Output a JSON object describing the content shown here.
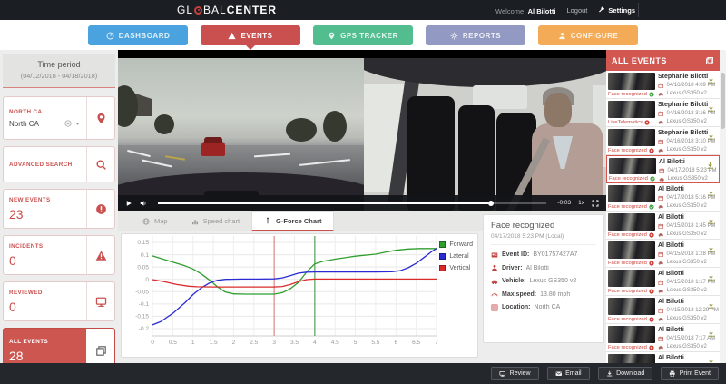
{
  "header": {
    "logo_part1": "GL",
    "logo_part2": "BAL",
    "logo_part3": "CENTER",
    "welcome": "Welcome",
    "user": "Al Bilotti",
    "logout": "Logout",
    "settings": "Settings"
  },
  "nav": {
    "items": [
      {
        "label": "DASHBOARD",
        "color": "#4aa3df",
        "icon": "gauge",
        "active": false
      },
      {
        "label": "EVENTS",
        "color": "#c9504e",
        "icon": "warning",
        "active": true
      },
      {
        "label": "GPS TRACKER",
        "color": "#52be90",
        "icon": "pin",
        "active": false
      },
      {
        "label": "REPORTS",
        "color": "#9299c2",
        "icon": "gear",
        "active": false
      },
      {
        "label": "CONFIGURE",
        "color": "#f3ab57",
        "icon": "person",
        "active": false
      }
    ]
  },
  "sidebar": {
    "time_period_title": "Time period",
    "time_period_range": "(04/12/2018 - 04/18/2018)",
    "filters": [
      {
        "label": "NORTH CA",
        "value": "North CA",
        "type": "select",
        "icon": "pin",
        "active": false
      },
      {
        "label": "ADVANCED SEARCH",
        "value": "",
        "type": "plain",
        "icon": "search",
        "active": false
      },
      {
        "label": "NEW EVENTS",
        "value": "23",
        "type": "count",
        "icon": "alert",
        "active": false
      },
      {
        "label": "INCIDENTS",
        "value": "0",
        "type": "count",
        "icon": "warning",
        "active": false
      },
      {
        "label": "REVIEWED",
        "value": "0",
        "type": "count",
        "icon": "monitor",
        "active": false
      },
      {
        "label": "ALL EVENTS",
        "value": "28",
        "type": "count",
        "icon": "copies",
        "active": true
      }
    ]
  },
  "video": {
    "remaining": "-0:03",
    "speed": "1x"
  },
  "tabs": {
    "items": [
      {
        "label": "Map",
        "icon": "globe",
        "active": false
      },
      {
        "label": "Speed chart",
        "icon": "barchart",
        "active": false
      },
      {
        "label": "G-Force Chart",
        "icon": "gforce",
        "active": true
      }
    ]
  },
  "chart_data": {
    "type": "line",
    "title": "",
    "xlabel": "",
    "ylabel": "",
    "xlim": [
      0,
      7
    ],
    "ylim": [
      -0.225,
      0.175
    ],
    "grid": true,
    "legend_position": "right",
    "x_ticks": [
      "0",
      "0.5",
      "1",
      "1.5",
      "2",
      "2.5",
      "3",
      "3.5",
      "4",
      "4.5",
      "5",
      "5.5",
      "6",
      "6.5",
      "7"
    ],
    "y_ticks": [
      "0.15",
      "0.1",
      "0.05",
      "0",
      "-0.05",
      "-0.1",
      "-0.15",
      "-0.2"
    ],
    "markers": [
      {
        "x": 3,
        "color": "#e08a85"
      },
      {
        "x": 4,
        "color": "#55a055"
      }
    ],
    "series": [
      {
        "name": "Forward",
        "color": "#2f9e2f",
        "points": [
          [
            0,
            0.095
          ],
          [
            0.4,
            0.075
          ],
          [
            0.8,
            0.055
          ],
          [
            1,
            0.042
          ],
          [
            1.2,
            0.022
          ],
          [
            1.4,
            -0.002
          ],
          [
            1.6,
            -0.03
          ],
          [
            1.8,
            -0.052
          ],
          [
            2,
            -0.059
          ],
          [
            2.3,
            -0.06
          ],
          [
            2.7,
            -0.06
          ],
          [
            3,
            -0.06
          ],
          [
            3.2,
            -0.054
          ],
          [
            3.4,
            -0.038
          ],
          [
            3.6,
            -0.012
          ],
          [
            3.8,
            0.03
          ],
          [
            4,
            0.063
          ],
          [
            4.2,
            0.073
          ],
          [
            4.5,
            0.082
          ],
          [
            5,
            0.094
          ],
          [
            5.5,
            0.102
          ],
          [
            5.8,
            0.112
          ],
          [
            6,
            0.118
          ],
          [
            6.3,
            0.123
          ],
          [
            6.6,
            0.125
          ],
          [
            7,
            0.125
          ]
        ]
      },
      {
        "name": "Lateral",
        "color": "#2b2bd6",
        "points": [
          [
            0,
            -0.185
          ],
          [
            0.2,
            -0.172
          ],
          [
            0.5,
            -0.138
          ],
          [
            0.8,
            -0.095
          ],
          [
            1,
            -0.062
          ],
          [
            1.2,
            -0.035
          ],
          [
            1.4,
            -0.015
          ],
          [
            1.6,
            -0.004
          ],
          [
            1.8,
            0
          ],
          [
            2.2,
            0.001
          ],
          [
            2.6,
            0.001
          ],
          [
            3,
            0.002
          ],
          [
            3.2,
            0.006
          ],
          [
            3.4,
            0.015
          ],
          [
            3.6,
            0.025
          ],
          [
            3.8,
            0.029
          ],
          [
            4,
            0.03
          ],
          [
            4.5,
            0.03
          ],
          [
            5,
            0.03
          ],
          [
            5.5,
            0.03
          ],
          [
            5.9,
            0.031
          ],
          [
            6.1,
            0.035
          ],
          [
            6.3,
            0.047
          ],
          [
            6.5,
            0.065
          ],
          [
            6.7,
            0.09
          ],
          [
            6.9,
            0.115
          ],
          [
            7,
            0.125
          ]
        ]
      },
      {
        "name": "Vertical",
        "color": "#d92b2b",
        "points": [
          [
            0,
            -0.001
          ],
          [
            0.3,
            -0.01
          ],
          [
            0.6,
            -0.021
          ],
          [
            0.9,
            -0.028
          ],
          [
            1.1,
            -0.03
          ],
          [
            1.5,
            -0.031
          ],
          [
            2,
            -0.031
          ],
          [
            2.5,
            -0.031
          ],
          [
            3,
            -0.031
          ],
          [
            3.2,
            -0.029
          ],
          [
            3.4,
            -0.021
          ],
          [
            3.6,
            -0.009
          ],
          [
            3.8,
            -0.001
          ],
          [
            4,
            0.001
          ],
          [
            4.5,
            0.001
          ],
          [
            5,
            0.001
          ],
          [
            5.5,
            0.001
          ],
          [
            6,
            0.001
          ],
          [
            6.5,
            0.001
          ],
          [
            7,
            0.001
          ]
        ]
      }
    ]
  },
  "event_details": {
    "title": "Face recognized",
    "timestamp": "04/17/2018 5:23 PM (Local)",
    "fields": [
      {
        "label": "Event ID",
        "value": "BY01757427A7",
        "icon": "idcard"
      },
      {
        "label": "Driver",
        "value": "Al Bilotti",
        "icon": "person"
      },
      {
        "label": "Vehicle",
        "value": "Lexus GS350 v2",
        "icon": "car"
      },
      {
        "label": "Max speed",
        "value": "13.80 mph",
        "icon": "speedo"
      },
      {
        "label": "Location",
        "value": "North CA",
        "icon": "mapgrid"
      }
    ]
  },
  "events_panel": {
    "title": "ALL EVENTS",
    "items": [
      {
        "name": "Stephanie Bilotti",
        "date": "04/16/2018 4:09 PM",
        "vehicle": "Lexus GS350 v2",
        "status": "Face recognized",
        "status_state": "ok",
        "selected": false
      },
      {
        "name": "Stephanie Bilotti",
        "date": "04/16/2018 3:16 PM",
        "vehicle": "Lexus GS350 v2",
        "status": "LiveTelematics",
        "status_state": "alert",
        "selected": false
      },
      {
        "name": "Stephanie Bilotti",
        "date": "04/16/2018 3:10 PM",
        "vehicle": "Lexus GS350 v2",
        "status": "Face recognized",
        "status_state": "alert",
        "selected": false
      },
      {
        "name": "Al Bilotti",
        "date": "04/17/2018 5:23 PM",
        "vehicle": "Lexus GS350 v2",
        "status": "Face recognized",
        "status_state": "ok",
        "selected": true
      },
      {
        "name": "Al Bilotti",
        "date": "04/17/2018 5:16 PM",
        "vehicle": "Lexus GS350 v2",
        "status": "Face recognized",
        "status_state": "ok",
        "selected": false
      },
      {
        "name": "Al Bilotti",
        "date": "04/15/2018 1:45 PM",
        "vehicle": "Lexus GS350 v2",
        "status": "Face recognized",
        "status_state": "alert",
        "selected": false
      },
      {
        "name": "Al Bilotti",
        "date": "04/15/2018 1:28 PM",
        "vehicle": "Lexus GS350 v2",
        "status": "Face recognized",
        "status_state": "alert",
        "selected": false
      },
      {
        "name": "Al Bilotti",
        "date": "04/15/2018 1:17 PM",
        "vehicle": "Lexus GS350 v2",
        "status": "Face recognized",
        "status_state": "alert",
        "selected": false
      },
      {
        "name": "Al Bilotti",
        "date": "04/15/2018 12:29 PM",
        "vehicle": "Lexus GS350 v2",
        "status": "Face recognized",
        "status_state": "alert",
        "selected": false
      },
      {
        "name": "Al Bilotti",
        "date": "04/15/2018 7:17 AM",
        "vehicle": "Lexus GS350 v2",
        "status": "Face recognized",
        "status_state": "alert",
        "selected": false
      },
      {
        "name": "Al Bilotti",
        "date": "",
        "vehicle": "",
        "status": "",
        "status_state": "",
        "selected": false
      }
    ]
  },
  "footer": {
    "buttons": [
      {
        "label": "Review",
        "icon": "monitor"
      },
      {
        "label": "Email",
        "icon": "envelope"
      },
      {
        "label": "Download",
        "icon": "download"
      },
      {
        "label": "Print Event",
        "icon": "printer"
      }
    ]
  },
  "colors": {
    "accent_red": "#c9504e",
    "panel_header_red": "#d25750",
    "status_ok_green": "#46a546",
    "status_alert_red": "#cc3b33"
  }
}
